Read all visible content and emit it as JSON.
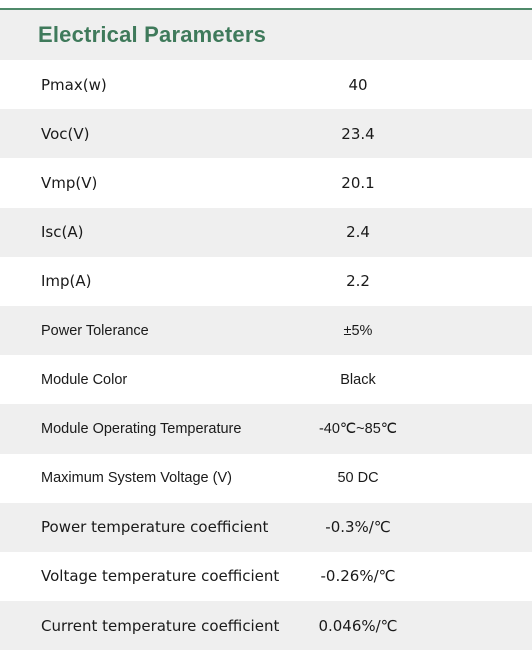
{
  "title": "Electrical Parameters",
  "rows": [
    {
      "label": "Pmax(w)",
      "value": "40"
    },
    {
      "label": "Voc(V)",
      "value": "23.4"
    },
    {
      "label": "Vmp(V)",
      "value": "20.1"
    },
    {
      "label": "Isc(A)",
      "value": "2.4"
    },
    {
      "label": "Imp(A)",
      "value": "2.2"
    },
    {
      "label": "Power Tolerance",
      "value": "±5%"
    },
    {
      "label": "Module Color",
      "value": "Black"
    },
    {
      "label": "Module Operating Temperature",
      "value": "-40℃~85℃"
    },
    {
      "label": "Maximum System Voltage (V)",
      "value": "50 DC"
    },
    {
      "label": "Power temperature coefficient",
      "value": "-0.3%/℃"
    },
    {
      "label": "Voltage temperature coefficient",
      "value": "-0.26%/℃"
    },
    {
      "label": "Current temperature coefficient",
      "value": "0.046%/℃"
    }
  ],
  "colors": {
    "accent": "#3f7a5b",
    "stripe": "#efefef",
    "text": "#1a1a1a"
  }
}
